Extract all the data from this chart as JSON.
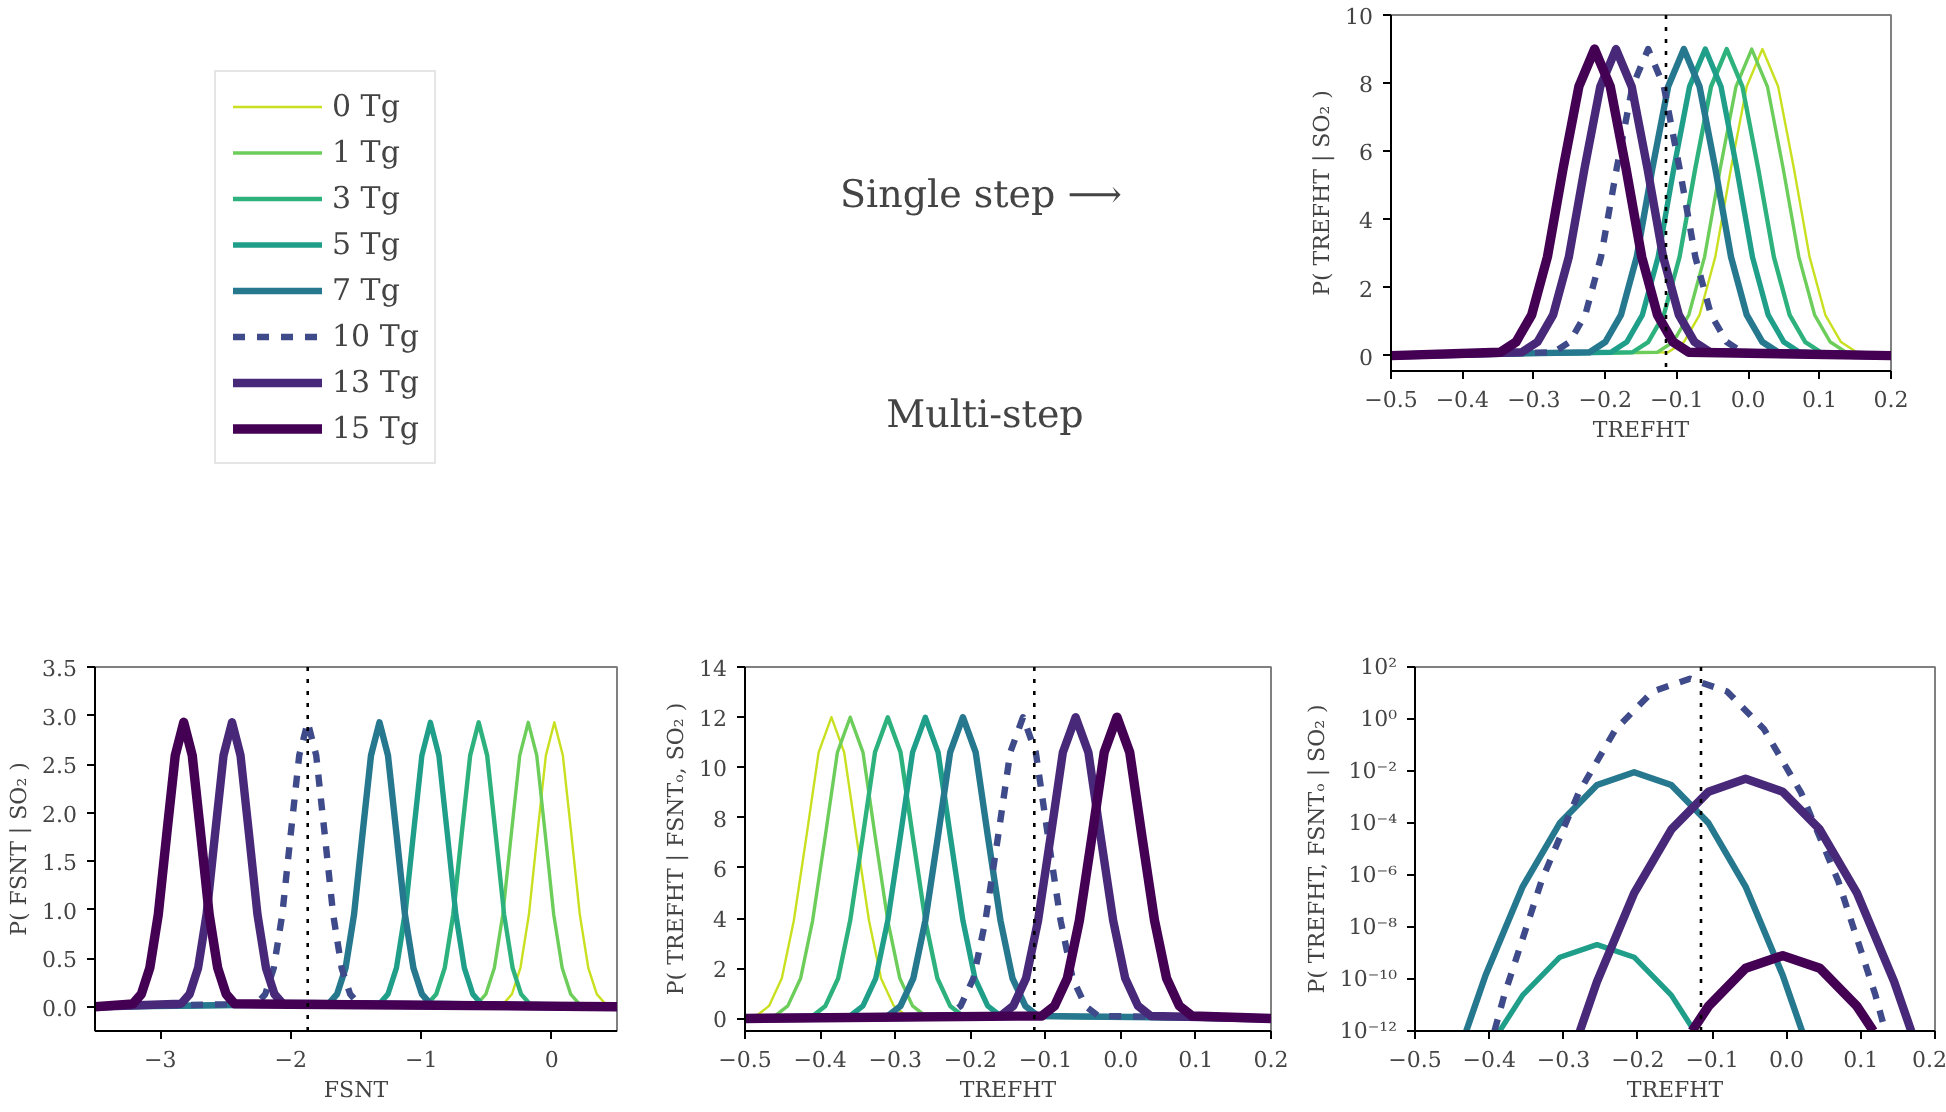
{
  "chart_data": [
    {
      "type": "line",
      "xlabel": "TREFHT",
      "ylabel": "P( TREFHT | SO₂ )",
      "annotations": [
        "Single step ⟶",
        "Multi-step"
      ],
      "legend": "left",
      "xlim": [
        -0.5,
        0.2
      ],
      "ylim": [
        -0.45,
        10
      ],
      "xticks": [
        {
          "value": -0.5,
          "label": "−0.5"
        },
        {
          "value": -0.4,
          "label": "−0.4"
        },
        {
          "value": -0.3,
          "label": "−0.3"
        },
        {
          "value": -0.2,
          "label": "−0.2"
        },
        {
          "value": -0.1,
          "label": "−0.1"
        },
        {
          "value": 0,
          "label": "0.0"
        },
        0.1,
        0.2
      ],
      "yticks": [
        0,
        2,
        4,
        6,
        8,
        10
      ],
      "ref_lines": [
        {
          "axis": "x",
          "value": -0.115,
          "color": "#000000",
          "line_style": "dotted"
        }
      ],
      "series": [
        {
          "name": "0 Tg",
          "color": "#c8e020",
          "x": [
            -0.5,
            -0.112,
            -0.09,
            -0.068,
            -0.046,
            -0.024,
            -0.002,
            0.02,
            0.042,
            0.064,
            0.086,
            0.108,
            0.13,
            0.152,
            0.2
          ],
          "values": [
            0,
            0.1,
            0.4,
            1.2,
            2.9,
            5.5,
            7.9,
            9,
            7.9,
            5.5,
            2.9,
            1.2,
            0.4,
            0.1,
            0
          ]
        },
        {
          "name": "1 Tg",
          "color": "#6ccd5a",
          "x": [
            -0.5,
            -0.127,
            -0.105,
            -0.083,
            -0.061,
            -0.039,
            -0.017,
            0.005,
            0.027,
            0.049,
            0.071,
            0.093,
            0.115,
            0.137,
            0.2
          ],
          "values": [
            0,
            0.1,
            0.4,
            1.2,
            2.9,
            5.5,
            7.9,
            9,
            7.9,
            5.5,
            2.9,
            1.2,
            0.4,
            0.1,
            0
          ]
        },
        {
          "name": "3 Tg",
          "color": "#2db27d",
          "x": [
            -0.5,
            -0.162,
            -0.14,
            -0.118,
            -0.096,
            -0.074,
            -0.052,
            -0.03,
            -0.008,
            0.014,
            0.036,
            0.058,
            0.08,
            0.102,
            0.2
          ],
          "values": [
            0,
            0.1,
            0.4,
            1.2,
            2.9,
            5.5,
            7.9,
            9,
            7.9,
            5.5,
            2.9,
            1.2,
            0.4,
            0.1,
            0
          ]
        },
        {
          "name": "5 Tg",
          "color": "#1f9e89",
          "x": [
            -0.5,
            -0.192,
            -0.17,
            -0.148,
            -0.126,
            -0.104,
            -0.082,
            -0.06,
            -0.038,
            -0.016,
            0.006,
            0.028,
            0.05,
            0.072,
            0.2
          ],
          "values": [
            0,
            0.1,
            0.4,
            1.2,
            2.9,
            5.5,
            7.9,
            9,
            7.9,
            5.5,
            2.9,
            1.2,
            0.4,
            0.1,
            0
          ]
        },
        {
          "name": "7 Tg",
          "color": "#26788e",
          "x": [
            -0.5,
            -0.222,
            -0.2,
            -0.178,
            -0.156,
            -0.134,
            -0.112,
            -0.09,
            -0.068,
            -0.046,
            -0.024,
            -0.002,
            0.02,
            0.042,
            0.2
          ],
          "values": [
            0,
            0.1,
            0.4,
            1.2,
            2.9,
            5.5,
            7.9,
            9,
            7.9,
            5.5,
            2.9,
            1.2,
            0.4,
            0.1,
            0
          ]
        },
        {
          "name": "10 Tg",
          "color": "#3e4a89",
          "line_style": "dashed",
          "x": [
            -0.5,
            -0.272,
            -0.25,
            -0.228,
            -0.206,
            -0.184,
            -0.162,
            -0.14,
            -0.118,
            -0.096,
            -0.074,
            -0.052,
            -0.03,
            -0.008,
            0.2
          ],
          "values": [
            0,
            0.1,
            0.4,
            1.2,
            2.9,
            5.5,
            7.9,
            9,
            7.9,
            5.5,
            2.9,
            1.2,
            0.4,
            0.1,
            0
          ]
        },
        {
          "name": "13 Tg",
          "color": "#482878",
          "x": [
            -0.5,
            -0.317,
            -0.295,
            -0.273,
            -0.251,
            -0.229,
            -0.207,
            -0.185,
            -0.163,
            -0.141,
            -0.119,
            -0.097,
            -0.075,
            -0.053,
            0.2
          ],
          "values": [
            0,
            0.1,
            0.4,
            1.2,
            2.9,
            5.5,
            7.9,
            9,
            7.9,
            5.5,
            2.9,
            1.2,
            0.4,
            0.1,
            0
          ]
        },
        {
          "name": "15 Tg",
          "color": "#440154",
          "x": [
            -0.5,
            -0.347,
            -0.325,
            -0.303,
            -0.281,
            -0.259,
            -0.237,
            -0.215,
            -0.193,
            -0.171,
            -0.149,
            -0.127,
            -0.105,
            -0.083,
            0.2
          ],
          "values": [
            0,
            0.1,
            0.4,
            1.2,
            2.9,
            5.5,
            7.9,
            9,
            7.9,
            5.5,
            2.9,
            1.2,
            0.4,
            0.1,
            0
          ]
        }
      ]
    },
    {
      "type": "line",
      "xlabel": "FSNT",
      "ylabel": "P( FSNT | SO₂ )",
      "xlim": [
        -3.5,
        0.5
      ],
      "ylim": [
        -0.25,
        3.5
      ],
      "xticks": [
        {
          "value": -3,
          "label": "−3"
        },
        {
          "value": -2,
          "label": "−2"
        },
        {
          "value": -1,
          "label": "−1"
        },
        0
      ],
      "yticks": [
        {
          "value": 0,
          "label": "0.0"
        },
        0.5,
        {
          "value": 1,
          "label": "1.0"
        },
        1.5,
        {
          "value": 2,
          "label": "2.0"
        },
        2.5,
        {
          "value": 3,
          "label": "3.0"
        },
        3.5
      ],
      "ref_lines": [
        {
          "axis": "x",
          "value": -1.87,
          "color": "#000000",
          "line_style": "dotted"
        }
      ],
      "series": [
        {
          "color": "#c8e020",
          "x": [
            -3.5,
            -0.37,
            -0.305,
            -0.24,
            -0.175,
            -0.11,
            -0.045,
            0.02,
            0.085,
            0.15,
            0.215,
            0.28,
            0.345,
            0.41,
            0.5
          ],
          "values": [
            0,
            0.03,
            0.13,
            0.4,
            0.95,
            1.78,
            2.59,
            2.93,
            2.59,
            1.78,
            0.95,
            0.4,
            0.13,
            0.03,
            0
          ]
        },
        {
          "color": "#6ccd5a",
          "x": [
            -3.5,
            -0.57,
            -0.505,
            -0.44,
            -0.375,
            -0.31,
            -0.245,
            -0.18,
            -0.115,
            -0.05,
            0.015,
            0.08,
            0.145,
            0.21,
            0.5
          ],
          "values": [
            0,
            0.03,
            0.13,
            0.4,
            0.95,
            1.78,
            2.59,
            2.93,
            2.59,
            1.78,
            0.95,
            0.4,
            0.13,
            0.03,
            0
          ]
        },
        {
          "color": "#2db27d",
          "x": [
            -3.5,
            -0.95,
            -0.885,
            -0.82,
            -0.755,
            -0.69,
            -0.625,
            -0.56,
            -0.495,
            -0.43,
            -0.365,
            -0.3,
            -0.235,
            -0.17,
            0.5
          ],
          "values": [
            0,
            0.03,
            0.13,
            0.4,
            0.95,
            1.78,
            2.59,
            2.93,
            2.59,
            1.78,
            0.95,
            0.4,
            0.13,
            0.03,
            0
          ]
        },
        {
          "color": "#1f9e89",
          "x": [
            -3.5,
            -1.32,
            -1.255,
            -1.19,
            -1.125,
            -1.06,
            -0.995,
            -0.93,
            -0.865,
            -0.8,
            -0.735,
            -0.67,
            -0.605,
            -0.54,
            0.5
          ],
          "values": [
            0,
            0.03,
            0.13,
            0.4,
            0.95,
            1.78,
            2.59,
            2.93,
            2.59,
            1.78,
            0.95,
            0.4,
            0.13,
            0.03,
            0
          ]
        },
        {
          "color": "#26788e",
          "x": [
            -3.5,
            -1.71,
            -1.645,
            -1.58,
            -1.515,
            -1.45,
            -1.385,
            -1.32,
            -1.255,
            -1.19,
            -1.125,
            -1.06,
            -0.995,
            -0.93,
            0.5
          ],
          "values": [
            0,
            0.03,
            0.13,
            0.4,
            0.95,
            1.78,
            2.59,
            2.93,
            2.59,
            1.78,
            0.95,
            0.4,
            0.13,
            0.03,
            0
          ]
        },
        {
          "color": "#3e4a89",
          "line_style": "dashed",
          "x": [
            -3.5,
            -2.26,
            -2.195,
            -2.13,
            -2.065,
            -2.0,
            -1.935,
            -1.87,
            -1.805,
            -1.74,
            -1.675,
            -1.61,
            -1.545,
            -1.48,
            0.5
          ],
          "values": [
            0,
            0.03,
            0.13,
            0.4,
            0.95,
            1.78,
            2.59,
            2.93,
            2.59,
            1.78,
            0.95,
            0.4,
            0.13,
            0.03,
            0
          ]
        },
        {
          "color": "#482878",
          "x": [
            -3.5,
            -2.84,
            -2.775,
            -2.71,
            -2.645,
            -2.58,
            -2.515,
            -2.45,
            -2.385,
            -2.32,
            -2.255,
            -2.19,
            -2.125,
            -2.06,
            0.5
          ],
          "values": [
            0,
            0.03,
            0.13,
            0.4,
            0.95,
            1.78,
            2.59,
            2.93,
            2.59,
            1.78,
            0.95,
            0.4,
            0.13,
            0.03,
            0
          ]
        },
        {
          "color": "#440154",
          "x": [
            -3.5,
            -3.21,
            -3.145,
            -3.08,
            -3.015,
            -2.95,
            -2.885,
            -2.82,
            -2.755,
            -2.69,
            -2.625,
            -2.56,
            -2.495,
            -2.43,
            0.5
          ],
          "values": [
            0,
            0.03,
            0.13,
            0.4,
            0.95,
            1.78,
            2.59,
            2.93,
            2.59,
            1.78,
            0.95,
            0.4,
            0.13,
            0.03,
            0
          ]
        }
      ]
    },
    {
      "type": "line",
      "xlabel": "TREFHT",
      "ylabel": "P( TREFHT | FSNTₒ, SO₂ )",
      "xlim": [
        -0.5,
        0.2
      ],
      "ylim": [
        -0.5,
        14
      ],
      "xticks": [
        {
          "value": -0.5,
          "label": "−0.5"
        },
        {
          "value": -0.4,
          "label": "−0.4"
        },
        {
          "value": -0.3,
          "label": "−0.3"
        },
        {
          "value": -0.2,
          "label": "−0.2"
        },
        {
          "value": -0.1,
          "label": "−0.1"
        },
        {
          "value": 0,
          "label": "0.0"
        },
        0.1,
        0.2
      ],
      "yticks": [
        0,
        2,
        4,
        6,
        8,
        10,
        12,
        14
      ],
      "ref_lines": [
        {
          "axis": "x",
          "value": -0.115,
          "color": "#000000",
          "line_style": "dotted"
        }
      ],
      "series": [
        {
          "color": "#c8e020",
          "x": [
            -0.5,
            -0.485,
            -0.468,
            -0.451,
            -0.435,
            -0.418,
            -0.402,
            -0.385,
            -0.368,
            -0.352,
            -0.335,
            -0.319,
            -0.302,
            -0.285,
            0.2
          ],
          "values": [
            0,
            0.1,
            0.5,
            1.6,
            3.9,
            7.3,
            10.6,
            12,
            10.6,
            7.3,
            3.9,
            1.6,
            0.5,
            0.1,
            0
          ]
        },
        {
          "color": "#6ccd5a",
          "x": [
            -0.5,
            -0.46,
            -0.443,
            -0.426,
            -0.41,
            -0.393,
            -0.377,
            -0.36,
            -0.343,
            -0.327,
            -0.31,
            -0.294,
            -0.277,
            -0.26,
            0.2
          ],
          "values": [
            0,
            0.1,
            0.5,
            1.6,
            3.9,
            7.3,
            10.6,
            12,
            10.6,
            7.3,
            3.9,
            1.6,
            0.5,
            0.1,
            0
          ]
        },
        {
          "color": "#2db27d",
          "x": [
            -0.5,
            -0.41,
            -0.393,
            -0.376,
            -0.36,
            -0.343,
            -0.327,
            -0.31,
            -0.293,
            -0.277,
            -0.26,
            -0.244,
            -0.227,
            -0.21,
            0.2
          ],
          "values": [
            0,
            0.1,
            0.5,
            1.6,
            3.9,
            7.3,
            10.6,
            12,
            10.6,
            7.3,
            3.9,
            1.6,
            0.5,
            0.1,
            0
          ]
        },
        {
          "color": "#1f9e89",
          "x": [
            -0.5,
            -0.36,
            -0.343,
            -0.326,
            -0.31,
            -0.293,
            -0.277,
            -0.26,
            -0.243,
            -0.227,
            -0.21,
            -0.194,
            -0.177,
            -0.16,
            0.2
          ],
          "values": [
            0,
            0.1,
            0.5,
            1.6,
            3.9,
            7.3,
            10.6,
            12,
            10.6,
            7.3,
            3.9,
            1.6,
            0.5,
            0.1,
            0
          ]
        },
        {
          "color": "#26788e",
          "x": [
            -0.5,
            -0.31,
            -0.293,
            -0.276,
            -0.26,
            -0.243,
            -0.227,
            -0.21,
            -0.193,
            -0.177,
            -0.16,
            -0.144,
            -0.127,
            -0.11,
            0.2
          ],
          "values": [
            0,
            0.1,
            0.5,
            1.6,
            3.9,
            7.3,
            10.6,
            12,
            10.6,
            7.3,
            3.9,
            1.6,
            0.5,
            0.1,
            0
          ]
        },
        {
          "color": "#3e4a89",
          "line_style": "dashed",
          "x": [
            -0.5,
            -0.23,
            -0.213,
            -0.196,
            -0.18,
            -0.163,
            -0.147,
            -0.13,
            -0.113,
            -0.097,
            -0.08,
            -0.064,
            -0.047,
            -0.03,
            0.2
          ],
          "values": [
            0,
            0.1,
            0.5,
            1.6,
            3.9,
            7.3,
            10.6,
            12,
            10.6,
            7.3,
            3.9,
            1.6,
            0.5,
            0.1,
            0
          ]
        },
        {
          "color": "#482878",
          "x": [
            -0.5,
            -0.16,
            -0.143,
            -0.126,
            -0.11,
            -0.093,
            -0.077,
            -0.06,
            -0.043,
            -0.027,
            -0.01,
            0.006,
            0.023,
            0.04,
            0.2
          ],
          "values": [
            0,
            0.1,
            0.5,
            1.6,
            3.9,
            7.3,
            10.6,
            12,
            10.6,
            7.3,
            3.9,
            1.6,
            0.5,
            0.1,
            0
          ]
        },
        {
          "color": "#440154",
          "x": [
            -0.5,
            -0.105,
            -0.088,
            -0.071,
            -0.055,
            -0.038,
            -0.022,
            -0.005,
            0.012,
            0.028,
            0.045,
            0.061,
            0.078,
            0.095,
            0.2
          ],
          "values": [
            0,
            0.1,
            0.5,
            1.6,
            3.9,
            7.3,
            10.6,
            12,
            10.6,
            7.3,
            3.9,
            1.6,
            0.5,
            0.1,
            0
          ]
        }
      ]
    },
    {
      "type": "line",
      "xlabel": "TREFHT",
      "ylabel": "P( TREFHT, FSNTₒ | SO₂ )",
      "log": "y",
      "xlim": [
        -0.5,
        0.2
      ],
      "ylim": [
        1e-12,
        100
      ],
      "xticks": [
        {
          "value": -0.5,
          "label": "−0.5"
        },
        {
          "value": -0.4,
          "label": "−0.4"
        },
        {
          "value": -0.3,
          "label": "−0.3"
        },
        {
          "value": -0.2,
          "label": "−0.2"
        },
        {
          "value": -0.1,
          "label": "−0.1"
        },
        {
          "value": 0,
          "label": "0.0"
        },
        0.1,
        0.2
      ],
      "yticks": [
        {
          "value": 1e-12,
          "label": "10⁻¹²"
        },
        {
          "value": 1e-10,
          "label": "10⁻¹⁰"
        },
        {
          "value": 1e-08,
          "label": "10⁻⁸"
        },
        {
          "value": 1e-06,
          "label": "10⁻⁶"
        },
        {
          "value": 0.0001,
          "label": "10⁻⁴"
        },
        {
          "value": 0.01,
          "label": "10⁻²"
        },
        {
          "value": 1,
          "label": "10⁰"
        },
        {
          "value": 100,
          "label": "10²"
        }
      ],
      "ref_lines": [
        {
          "axis": "x",
          "value": -0.115,
          "color": "#000000",
          "line_style": "dotted"
        }
      ],
      "series": [
        {
          "color": "#1f9e89",
          "x": [
            -0.386,
            -0.355,
            -0.305,
            -0.255,
            -0.205,
            -0.155,
            -0.124
          ],
          "values": [
            1e-12,
            2.4e-11,
            6.9e-10,
            2.1e-09,
            6.9e-10,
            2.4e-11,
            1e-12
          ]
        },
        {
          "color": "#26788e",
          "x": [
            -0.431,
            -0.405,
            -0.355,
            -0.305,
            -0.255,
            -0.205,
            -0.155,
            -0.105,
            -0.055,
            -0.005,
            0.021
          ],
          "values": [
            1e-12,
            1.4e-10,
            3.6e-07,
            0.0001,
            0.0029,
            0.0089,
            0.0029,
            0.0001,
            3.6e-07,
            1.4e-10,
            1e-12
          ]
        },
        {
          "color": "#3e4a89",
          "line_style": "dashed",
          "x": [
            -0.393,
            -0.38,
            -0.33,
            -0.28,
            -0.23,
            -0.18,
            -0.13,
            -0.08,
            -0.03,
            0.02,
            0.07,
            0.12,
            0.133
          ],
          "values": [
            1e-12,
            2.3e-11,
            5.6e-07,
            0.0014,
            0.4,
            11.5,
            35.5,
            11.5,
            0.4,
            0.0014,
            5.6e-07,
            2.3e-11,
            1e-12
          ]
        },
        {
          "color": "#482878",
          "x": [
            -0.278,
            -0.255,
            -0.205,
            -0.155,
            -0.105,
            -0.055,
            -0.005,
            0.045,
            0.095,
            0.145,
            0.168
          ],
          "values": [
            1e-12,
            7.9e-11,
            2e-07,
            5.6e-05,
            0.0016,
            0.005,
            0.0016,
            5.6e-05,
            2e-07,
            7.9e-11,
            1e-12
          ]
        },
        {
          "color": "#440154",
          "x": [
            -0.127,
            -0.105,
            -0.055,
            -0.005,
            0.045,
            0.095,
            0.117
          ],
          "values": [
            1e-12,
            8.9e-12,
            2.6e-10,
            7.9e-10,
            2.6e-10,
            8.9e-12,
            1e-12
          ]
        }
      ]
    }
  ]
}
